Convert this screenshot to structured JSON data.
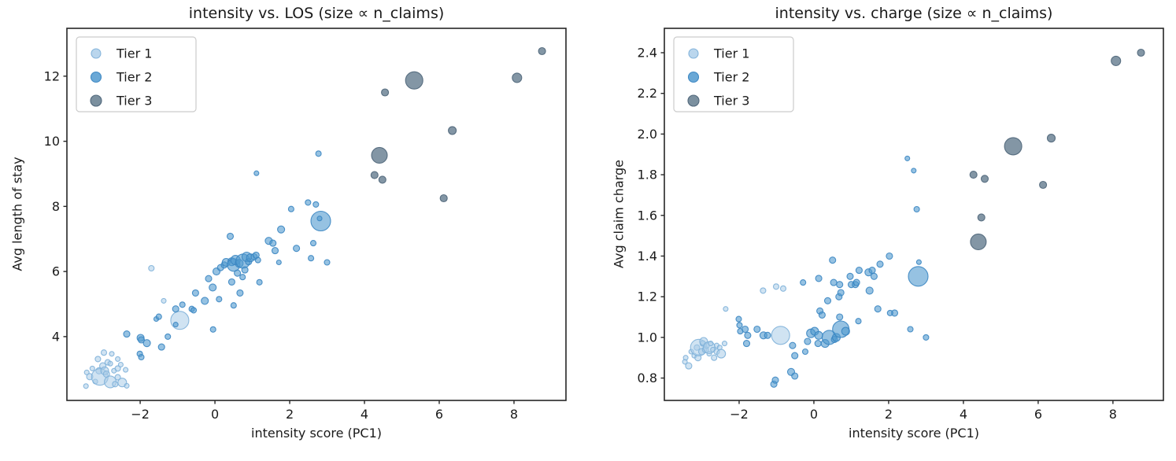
{
  "figure": {
    "background": "#ffffff",
    "text_color": "#1a1a1a",
    "spine_color": "#262626"
  },
  "tiers": {
    "tier1": {
      "fill": "#a9cce8",
      "edge": "#7fb1d9",
      "fill_opacity": 0.55,
      "legend_opacity": 0.8
    },
    "tier2": {
      "fill": "#5099cf",
      "edge": "#3b86c2",
      "fill_opacity": 0.6,
      "legend_opacity": 0.85
    },
    "tier3": {
      "fill": "#6d8495",
      "edge": "#4e6579",
      "fill_opacity": 0.85,
      "legend_opacity": 0.9
    }
  },
  "legend": {
    "items": [
      {
        "label": "Tier 1",
        "tier": "tier1",
        "r": 6
      },
      {
        "label": "Tier 2",
        "tier": "tier2",
        "r": 6.5
      },
      {
        "label": "Tier 3",
        "tier": "tier3",
        "r": 7
      }
    ],
    "border_color": "#cccccc",
    "background": "#ffffff"
  },
  "chart_data": [
    {
      "type": "scatter",
      "title": "intensity vs. LOS (size ∝ n_claims)",
      "xlabel": "intensity score (PC1)",
      "ylabel": "Avg length of stay",
      "xlim": [
        -3.96,
        9.39
      ],
      "ylim": [
        2.04,
        13.47
      ],
      "xticks": [
        -2,
        0,
        2,
        4,
        6,
        8
      ],
      "xtick_labels": [
        "−2",
        "0",
        "2",
        "4",
        "6",
        "8"
      ],
      "yticks": [
        4,
        6,
        8,
        10,
        12
      ],
      "ytick_labels": [
        "4",
        "6",
        "8",
        "10",
        "12"
      ],
      "grid": false,
      "legend_position": "upper left",
      "series": [
        {
          "name": "Tier 1",
          "tier": "tier1",
          "points": [
            [
              -3.45,
              2.48,
              3
            ],
            [
              -3.43,
              2.9,
              3
            ],
            [
              -3.35,
              2.77,
              4
            ],
            [
              -3.28,
              3.02,
              3
            ],
            [
              -3.2,
              2.62,
              3
            ],
            [
              -3.13,
              3.31,
              3.5
            ],
            [
              -3.1,
              2.95,
              4
            ],
            [
              -3.08,
              2.76,
              10.5
            ],
            [
              -3.0,
              3.1,
              4
            ],
            [
              -2.97,
              3.51,
              3.5
            ],
            [
              -2.95,
              2.95,
              5
            ],
            [
              -2.9,
              2.85,
              4
            ],
            [
              -2.87,
              3.21,
              3.5
            ],
            [
              -2.8,
              3.17,
              3
            ],
            [
              -2.8,
              2.61,
              7.5
            ],
            [
              -2.76,
              3.47,
              3
            ],
            [
              -2.7,
              2.95,
              3
            ],
            [
              -2.67,
              2.54,
              3.5
            ],
            [
              -2.6,
              3.31,
              3
            ],
            [
              -2.6,
              3.02,
              3.5
            ],
            [
              -2.6,
              2.75,
              3.5
            ],
            [
              -2.52,
              3.14,
              3
            ],
            [
              -2.48,
              2.59,
              5.5
            ],
            [
              -2.39,
              2.98,
              3
            ],
            [
              -2.36,
              2.49,
              3
            ],
            [
              -1.7,
              6.1,
              3.5
            ],
            [
              -1.37,
              5.1,
              3
            ],
            [
              -0.94,
              4.5,
              11.5
            ]
          ]
        },
        {
          "name": "Tier 2",
          "tier": "tier2",
          "points": [
            [
              -2.36,
              4.08,
              4
            ],
            [
              -2.01,
              3.47,
              3.5
            ],
            [
              -1.99,
              3.96,
              4.5
            ],
            [
              -1.97,
              3.9,
              4
            ],
            [
              -1.97,
              3.37,
              3.5
            ],
            [
              -1.82,
              3.8,
              4.5
            ],
            [
              -1.43,
              3.68,
              4
            ],
            [
              -1.26,
              4.0,
              3.5
            ],
            [
              -1.57,
              4.54,
              3
            ],
            [
              -1.5,
              4.61,
              3.5
            ],
            [
              -1.05,
              4.85,
              4
            ],
            [
              -1.05,
              4.37,
              3
            ],
            [
              -0.87,
              4.98,
              3.5
            ],
            [
              -0.62,
              4.85,
              3.5
            ],
            [
              -0.57,
              4.81,
              3.5
            ],
            [
              -0.52,
              5.34,
              4
            ],
            [
              -0.27,
              5.1,
              4.5
            ],
            [
              -0.05,
              4.22,
              3.5
            ],
            [
              0.11,
              5.15,
              3.5
            ],
            [
              0.5,
              4.96,
              3.5
            ],
            [
              -0.17,
              5.78,
              4
            ],
            [
              -0.06,
              5.51,
              4.5
            ],
            [
              0.45,
              5.68,
              4
            ],
            [
              0.74,
              5.83,
              3.5
            ],
            [
              0.67,
              5.34,
              4
            ],
            [
              0.04,
              6.0,
              4.5
            ],
            [
              0.15,
              6.12,
              4
            ],
            [
              0.25,
              6.2,
              4
            ],
            [
              0.3,
              6.28,
              5
            ],
            [
              0.41,
              7.08,
              4
            ],
            [
              0.45,
              6.3,
              5
            ],
            [
              0.5,
              6.2,
              8
            ],
            [
              0.55,
              6.35,
              6
            ],
            [
              0.6,
              5.95,
              4
            ],
            [
              0.65,
              6.25,
              5
            ],
            [
              0.75,
              6.32,
              9
            ],
            [
              0.8,
              6.05,
              4
            ],
            [
              0.85,
              6.45,
              6
            ],
            [
              0.9,
              6.3,
              4
            ],
            [
              0.95,
              6.42,
              5
            ],
            [
              1.05,
              6.45,
              4
            ],
            [
              1.1,
              6.5,
              4
            ],
            [
              1.15,
              6.35,
              3.5
            ],
            [
              1.19,
              5.67,
              3.5
            ],
            [
              1.44,
              6.94,
              4.5
            ],
            [
              1.55,
              6.87,
              4
            ],
            [
              1.61,
              6.64,
              4
            ],
            [
              1.71,
              6.28,
              3
            ],
            [
              1.77,
              7.29,
              4.5
            ],
            [
              2.04,
              7.92,
              3.5
            ],
            [
              2.18,
              6.71,
              4
            ],
            [
              2.49,
              8.12,
              3.5
            ],
            [
              2.7,
              8.06,
              3.5
            ],
            [
              2.57,
              6.41,
              3.5
            ],
            [
              2.63,
              6.87,
              3.5
            ],
            [
              2.83,
              7.55,
              12.5
            ],
            [
              2.8,
              7.63,
              3
            ],
            [
              2.77,
              9.62,
              3.5
            ],
            [
              1.11,
              9.02,
              3
            ],
            [
              3.0,
              6.28,
              3.5
            ]
          ]
        },
        {
          "name": "Tier 3",
          "tier": "tier3",
          "points": [
            [
              4.27,
              8.96,
              4.5
            ],
            [
              4.48,
              8.82,
              4.5
            ],
            [
              4.4,
              9.57,
              10
            ],
            [
              4.55,
              11.5,
              4.5
            ],
            [
              5.33,
              11.87,
              11
            ],
            [
              6.12,
              8.25,
              4.5
            ],
            [
              6.35,
              10.33,
              5
            ],
            [
              8.08,
              11.95,
              6
            ],
            [
              8.75,
              12.77,
              4.5
            ]
          ]
        }
      ]
    },
    {
      "type": "scatter",
      "title": "intensity vs. charge (size ∝ n_claims)",
      "xlabel": "intensity score (PC1)",
      "ylabel": "Avg claim charge",
      "xlim": [
        -4.0,
        9.35
      ],
      "ylim": [
        0.69,
        2.52
      ],
      "xticks": [
        -2,
        0,
        2,
        4,
        6,
        8
      ],
      "xtick_labels": [
        "−2",
        "0",
        "2",
        "4",
        "6",
        "8"
      ],
      "yticks": [
        0.8,
        1.0,
        1.2,
        1.4,
        1.6,
        1.8,
        2.0,
        2.2,
        2.4
      ],
      "ytick_labels": [
        "0.8",
        "1.0",
        "1.2",
        "1.4",
        "1.6",
        "1.8",
        "2.0",
        "2.2",
        "2.4"
      ],
      "grid": false,
      "legend_position": "upper left",
      "series": [
        {
          "name": "Tier 1",
          "tier": "tier1",
          "points": [
            [
              -3.45,
              0.88,
              3
            ],
            [
              -3.43,
              0.9,
              3
            ],
            [
              -3.35,
              0.86,
              4
            ],
            [
              -3.28,
              0.93,
              3
            ],
            [
              -3.2,
              0.91,
              3
            ],
            [
              -3.13,
              0.95,
              3.5
            ],
            [
              -3.1,
              0.9,
              4
            ],
            [
              -3.08,
              0.95,
              10.5
            ],
            [
              -3.0,
              0.93,
              4
            ],
            [
              -2.97,
              0.97,
              3.5
            ],
            [
              -2.95,
              0.98,
              5
            ],
            [
              -2.9,
              0.94,
              4
            ],
            [
              -2.87,
              0.96,
              3.5
            ],
            [
              -2.8,
              0.92,
              3
            ],
            [
              -2.8,
              0.95,
              7.5
            ],
            [
              -2.76,
              0.97,
              3
            ],
            [
              -2.7,
              0.94,
              3
            ],
            [
              -2.67,
              0.9,
              3.5
            ],
            [
              -2.6,
              0.96,
              3
            ],
            [
              -2.6,
              0.93,
              3.5
            ],
            [
              -2.52,
              0.95,
              3
            ],
            [
              -2.48,
              0.92,
              5.5
            ],
            [
              -2.39,
              0.97,
              3
            ],
            [
              -2.36,
              1.14,
              3
            ],
            [
              -1.36,
              1.23,
              3.5
            ],
            [
              -1.01,
              1.25,
              3.5
            ],
            [
              -0.82,
              1.24,
              3.5
            ],
            [
              -0.89,
              1.01,
              11.5
            ]
          ]
        },
        {
          "name": "Tier 2",
          "tier": "tier2",
          "points": [
            [
              -2.01,
              1.09,
              3.5
            ],
            [
              -1.99,
              1.06,
              3.5
            ],
            [
              -1.97,
              1.03,
              3.5
            ],
            [
              -1.84,
              1.04,
              4
            ],
            [
              -1.8,
              0.97,
              4
            ],
            [
              -1.77,
              1.01,
              4
            ],
            [
              -1.52,
              1.04,
              4
            ],
            [
              -1.35,
              1.01,
              4.5
            ],
            [
              -1.24,
              1.01,
              4
            ],
            [
              -1.07,
              0.77,
              4
            ],
            [
              -1.03,
              0.79,
              4
            ],
            [
              -0.61,
              0.83,
              4.5
            ],
            [
              -0.51,
              0.81,
              4
            ],
            [
              -0.57,
              0.96,
              4
            ],
            [
              -0.51,
              0.91,
              4
            ],
            [
              -0.29,
              1.27,
              3.5
            ],
            [
              -0.23,
              0.93,
              3.5
            ],
            [
              -0.17,
              0.98,
              4
            ],
            [
              -0.08,
              1.02,
              5.5
            ],
            [
              0.02,
              1.03,
              5
            ],
            [
              0.11,
              0.97,
              4
            ],
            [
              0.13,
              1.01,
              5
            ],
            [
              0.16,
              1.13,
              4
            ],
            [
              0.22,
              1.11,
              4
            ],
            [
              0.13,
              1.29,
              4
            ],
            [
              0.3,
              0.97,
              5
            ],
            [
              0.37,
              1.18,
              4
            ],
            [
              0.41,
              1.0,
              9
            ],
            [
              0.5,
              1.38,
              4
            ],
            [
              0.53,
              1.27,
              4
            ],
            [
              0.55,
              0.99,
              4
            ],
            [
              0.6,
              1.0,
              5
            ],
            [
              0.67,
              1.2,
              4
            ],
            [
              0.69,
              1.1,
              4
            ],
            [
              0.69,
              1.26,
              4
            ],
            [
              0.72,
              1.22,
              4
            ],
            [
              0.72,
              1.04,
              10.5
            ],
            [
              0.85,
              1.03,
              5
            ],
            [
              0.97,
              1.3,
              4
            ],
            [
              1.0,
              1.26,
              4
            ],
            [
              1.11,
              1.26,
              4
            ],
            [
              1.14,
              1.27,
              4
            ],
            [
              1.21,
              1.33,
              4
            ],
            [
              1.46,
              1.32,
              4.5
            ],
            [
              1.49,
              1.23,
              4.5
            ],
            [
              1.56,
              1.33,
              4
            ],
            [
              1.71,
              1.14,
              4
            ],
            [
              1.77,
              1.36,
              4
            ],
            [
              2.02,
              1.4,
              4
            ],
            [
              2.16,
              1.12,
              4
            ],
            [
              2.5,
              1.88,
              3
            ],
            [
              2.67,
              1.82,
              3
            ],
            [
              2.75,
              1.63,
              3.5
            ],
            [
              2.79,
              1.3,
              12.5
            ],
            [
              2.81,
              1.37,
              3
            ],
            [
              2.58,
              1.04,
              3.5
            ],
            [
              3.0,
              1.0,
              3.5
            ],
            [
              1.19,
              1.08,
              3.5
            ],
            [
              1.61,
              1.3,
              4
            ],
            [
              2.04,
              1.12,
              3.5
            ]
          ]
        },
        {
          "name": "Tier 3",
          "tier": "tier3",
          "points": [
            [
              4.27,
              1.8,
              4.5
            ],
            [
              4.48,
              1.59,
              4.5
            ],
            [
              4.4,
              1.47,
              10
            ],
            [
              4.57,
              1.78,
              4.5
            ],
            [
              5.33,
              1.94,
              11
            ],
            [
              6.13,
              1.75,
              4.5
            ],
            [
              6.35,
              1.98,
              5
            ],
            [
              8.08,
              2.36,
              6
            ],
            [
              8.75,
              2.4,
              4.5
            ]
          ]
        }
      ]
    }
  ]
}
